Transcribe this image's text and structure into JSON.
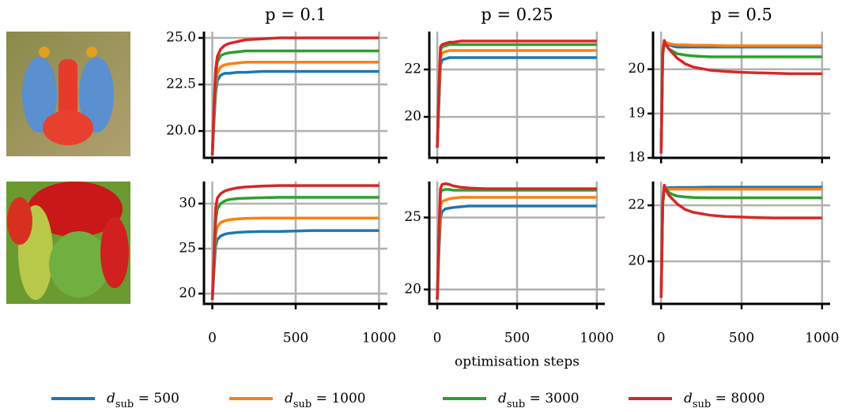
{
  "chart_data": [
    {
      "type": "line",
      "title": "p = 0.1",
      "x": [
        0,
        10,
        20,
        30,
        50,
        75,
        100,
        150,
        200,
        300,
        400,
        500,
        600,
        700,
        800,
        900,
        1000
      ],
      "xlim": [
        -50,
        1050
      ],
      "xticks": [
        0,
        500,
        1000
      ],
      "show_xticklabels": false,
      "ylim": [
        18.56,
        25.34
      ],
      "yticks": [
        {
          "value": 20,
          "label": "20.0"
        },
        {
          "value": 22.5,
          "label": "22.5"
        },
        {
          "value": 25,
          "label": "25.0"
        }
      ],
      "grid": true,
      "series": [
        {
          "name": "dsub = 500",
          "color": "#1f77b4",
          "values": [
            18.7,
            20.5,
            22.0,
            22.7,
            23.0,
            23.1,
            23.1,
            23.15,
            23.15,
            23.2,
            23.2,
            23.2,
            23.2,
            23.2,
            23.2,
            23.2,
            23.2
          ]
        },
        {
          "name": "dsub = 1000",
          "color": "#ff7f0e",
          "values": [
            18.7,
            20.7,
            22.4,
            23.1,
            23.45,
            23.55,
            23.6,
            23.65,
            23.7,
            23.7,
            23.7,
            23.7,
            23.7,
            23.7,
            23.7,
            23.7,
            23.7
          ]
        },
        {
          "name": "dsub = 3000",
          "color": "#2ca02c",
          "values": [
            18.7,
            21.0,
            22.9,
            23.7,
            24.05,
            24.15,
            24.2,
            24.25,
            24.3,
            24.3,
            24.3,
            24.3,
            24.3,
            24.3,
            24.3,
            24.3,
            24.3
          ]
        },
        {
          "name": "dsub = 8000",
          "color": "#d62728",
          "values": [
            18.7,
            21.3,
            23.3,
            24.0,
            24.4,
            24.6,
            24.7,
            24.8,
            24.9,
            24.95,
            25.0,
            25.0,
            25.0,
            25.0,
            25.0,
            25.0,
            25.0
          ]
        }
      ]
    },
    {
      "type": "line",
      "title": "p = 0.25",
      "x": [
        0,
        10,
        20,
        30,
        50,
        75,
        100,
        150,
        200,
        300,
        400,
        500,
        600,
        700,
        800,
        900,
        1000
      ],
      "xlim": [
        -50,
        1050
      ],
      "xticks": [
        0,
        500,
        1000
      ],
      "show_xticklabels": false,
      "ylim": [
        18.27,
        23.6
      ],
      "yticks": [
        20,
        22
      ],
      "grid": true,
      "series": [
        {
          "name": "dsub = 500",
          "color": "#1f77b4",
          "values": [
            18.7,
            20.5,
            22.2,
            22.4,
            22.45,
            22.5,
            22.5,
            22.5,
            22.5,
            22.5,
            22.5,
            22.5,
            22.5,
            22.5,
            22.5,
            22.5,
            22.5
          ]
        },
        {
          "name": "dsub = 1000",
          "color": "#ff7f0e",
          "values": [
            18.7,
            20.8,
            22.5,
            22.7,
            22.75,
            22.8,
            22.8,
            22.8,
            22.8,
            22.8,
            22.8,
            22.8,
            22.8,
            22.8,
            22.8,
            22.8,
            22.8
          ]
        },
        {
          "name": "dsub = 3000",
          "color": "#2ca02c",
          "values": [
            18.7,
            21.0,
            22.8,
            22.95,
            23.0,
            23.05,
            23.05,
            23.05,
            23.05,
            23.05,
            23.05,
            23.05,
            23.05,
            23.05,
            23.05,
            23.05,
            23.05
          ]
        },
        {
          "name": "dsub = 8000",
          "color": "#d62728",
          "values": [
            18.7,
            21.2,
            22.95,
            23.05,
            23.1,
            23.15,
            23.15,
            23.2,
            23.2,
            23.2,
            23.2,
            23.2,
            23.2,
            23.2,
            23.2,
            23.2,
            23.2
          ]
        }
      ]
    },
    {
      "type": "line",
      "title": "p = 0.5",
      "x": [
        0,
        10,
        20,
        30,
        50,
        75,
        100,
        150,
        200,
        300,
        400,
        500,
        600,
        700,
        800,
        900,
        1000
      ],
      "xlim": [
        -50,
        1050
      ],
      "xticks": [
        0,
        500,
        1000
      ],
      "show_xticklabels": false,
      "ylim": [
        18,
        20.85
      ],
      "yticks": [
        18,
        19,
        20
      ],
      "grid": true,
      "series": [
        {
          "name": "dsub = 500",
          "color": "#1f77b4",
          "values": [
            18.1,
            20.3,
            20.6,
            20.58,
            20.55,
            20.52,
            20.5,
            20.5,
            20.5,
            20.5,
            20.5,
            20.5,
            20.5,
            20.5,
            20.5,
            20.5,
            20.5
          ]
        },
        {
          "name": "dsub = 1000",
          "color": "#ff7f0e",
          "values": [
            18.1,
            20.3,
            20.62,
            20.6,
            20.58,
            20.56,
            20.55,
            20.55,
            20.54,
            20.54,
            20.53,
            20.53,
            20.53,
            20.53,
            20.53,
            20.53,
            20.53
          ]
        },
        {
          "name": "dsub = 3000",
          "color": "#2ca02c",
          "values": [
            18.1,
            20.35,
            20.62,
            20.55,
            20.45,
            20.4,
            20.35,
            20.32,
            20.3,
            20.28,
            20.28,
            20.28,
            20.28,
            20.28,
            20.28,
            20.28,
            20.28
          ]
        },
        {
          "name": "dsub = 8000",
          "color": "#d62728",
          "values": [
            18.1,
            20.4,
            20.65,
            20.55,
            20.45,
            20.35,
            20.25,
            20.12,
            20.05,
            19.98,
            19.95,
            19.93,
            19.92,
            19.91,
            19.9,
            19.9,
            19.9
          ]
        }
      ]
    },
    {
      "type": "line",
      "x": [
        0,
        10,
        20,
        30,
        50,
        75,
        100,
        150,
        200,
        300,
        400,
        500,
        600,
        700,
        800,
        900,
        1000
      ],
      "xlim": [
        -50,
        1050
      ],
      "xticks": [
        0,
        500,
        1000
      ],
      "show_xticklabels": true,
      "ylim": [
        18.86,
        32.45
      ],
      "yticks": [
        20,
        25,
        30
      ],
      "grid": true,
      "series": [
        {
          "name": "dsub = 500",
          "color": "#1f77b4",
          "values": [
            19.3,
            22.5,
            25.3,
            26.0,
            26.4,
            26.6,
            26.7,
            26.8,
            26.85,
            26.9,
            26.9,
            26.95,
            27.0,
            27.0,
            27.0,
            27.0,
            27.0
          ]
        },
        {
          "name": "dsub = 1000",
          "color": "#ff7f0e",
          "values": [
            19.3,
            23.0,
            26.5,
            27.4,
            27.9,
            28.1,
            28.2,
            28.3,
            28.35,
            28.4,
            28.4,
            28.4,
            28.4,
            28.4,
            28.4,
            28.4,
            28.4
          ]
        },
        {
          "name": "dsub = 3000",
          "color": "#2ca02c",
          "values": [
            19.3,
            23.5,
            28.0,
            29.4,
            30.0,
            30.3,
            30.45,
            30.55,
            30.6,
            30.65,
            30.7,
            30.7,
            30.7,
            30.7,
            30.7,
            30.7,
            30.7
          ]
        },
        {
          "name": "dsub = 8000",
          "color": "#d62728",
          "values": [
            19.3,
            24.0,
            29.5,
            30.6,
            31.1,
            31.4,
            31.55,
            31.75,
            31.85,
            31.95,
            32.0,
            32.0,
            32.0,
            32.0,
            32.0,
            32.0,
            32.0
          ]
        }
      ]
    },
    {
      "type": "line",
      "xlabel": "optimisation steps",
      "x": [
        0,
        10,
        20,
        30,
        50,
        75,
        100,
        150,
        200,
        300,
        400,
        500,
        600,
        700,
        800,
        900,
        1000
      ],
      "xlim": [
        -50,
        1050
      ],
      "xticks": [
        0,
        500,
        1000
      ],
      "show_xticklabels": true,
      "ylim": [
        19.0,
        27.5
      ],
      "yticks": [
        20,
        25
      ],
      "grid": true,
      "series": [
        {
          "name": "dsub = 500",
          "color": "#1f77b4",
          "values": [
            19.3,
            22.5,
            25.0,
            25.4,
            25.6,
            25.65,
            25.7,
            25.75,
            25.8,
            25.8,
            25.8,
            25.8,
            25.8,
            25.8,
            25.8,
            25.8,
            25.8
          ]
        },
        {
          "name": "dsub = 1000",
          "color": "#ff7f0e",
          "values": [
            19.3,
            23.0,
            25.8,
            26.1,
            26.2,
            26.3,
            26.35,
            26.4,
            26.4,
            26.4,
            26.4,
            26.4,
            26.4,
            26.4,
            26.4,
            26.4,
            26.4
          ]
        },
        {
          "name": "dsub = 3000",
          "color": "#2ca02c",
          "values": [
            19.3,
            23.5,
            26.7,
            26.9,
            26.95,
            26.95,
            26.9,
            26.9,
            26.9,
            26.9,
            26.9,
            26.9,
            26.9,
            26.9,
            26.9,
            26.9,
            26.9
          ]
        },
        {
          "name": "dsub = 8000",
          "color": "#d62728",
          "values": [
            19.3,
            24.0,
            27.0,
            27.3,
            27.35,
            27.3,
            27.2,
            27.1,
            27.05,
            27.0,
            27.0,
            27.0,
            27.0,
            27.0,
            27.0,
            27.0,
            27.0
          ]
        }
      ]
    },
    {
      "type": "line",
      "x": [
        0,
        10,
        20,
        30,
        50,
        75,
        100,
        150,
        200,
        300,
        400,
        500,
        600,
        700,
        800,
        900,
        1000
      ],
      "xlim": [
        -50,
        1050
      ],
      "xticks": [
        0,
        500,
        1000
      ],
      "show_xticklabels": true,
      "ylim": [
        18.48,
        22.85
      ],
      "yticks": [
        20,
        22
      ],
      "grid": true,
      "series": [
        {
          "name": "dsub = 500",
          "color": "#1f77b4",
          "values": [
            18.7,
            22.0,
            22.62,
            22.62,
            22.63,
            22.63,
            22.64,
            22.64,
            22.64,
            22.65,
            22.65,
            22.65,
            22.65,
            22.65,
            22.65,
            22.65,
            22.65
          ]
        },
        {
          "name": "dsub = 1000",
          "color": "#ff7f0e",
          "values": [
            18.7,
            22.0,
            22.65,
            22.6,
            22.58,
            22.58,
            22.58,
            22.58,
            22.58,
            22.58,
            22.58,
            22.58,
            22.58,
            22.58,
            22.58,
            22.58,
            22.58
          ]
        },
        {
          "name": "dsub = 3000",
          "color": "#2ca02c",
          "values": [
            18.7,
            22.05,
            22.7,
            22.6,
            22.45,
            22.38,
            22.33,
            22.3,
            22.28,
            22.27,
            22.27,
            22.27,
            22.27,
            22.27,
            22.27,
            22.27,
            22.27
          ]
        },
        {
          "name": "dsub = 8000",
          "color": "#d62728",
          "values": [
            18.7,
            22.1,
            22.72,
            22.55,
            22.35,
            22.2,
            22.05,
            21.85,
            21.75,
            21.65,
            21.6,
            21.58,
            21.56,
            21.55,
            21.55,
            21.55,
            21.55
          ]
        }
      ]
    }
  ]
}
